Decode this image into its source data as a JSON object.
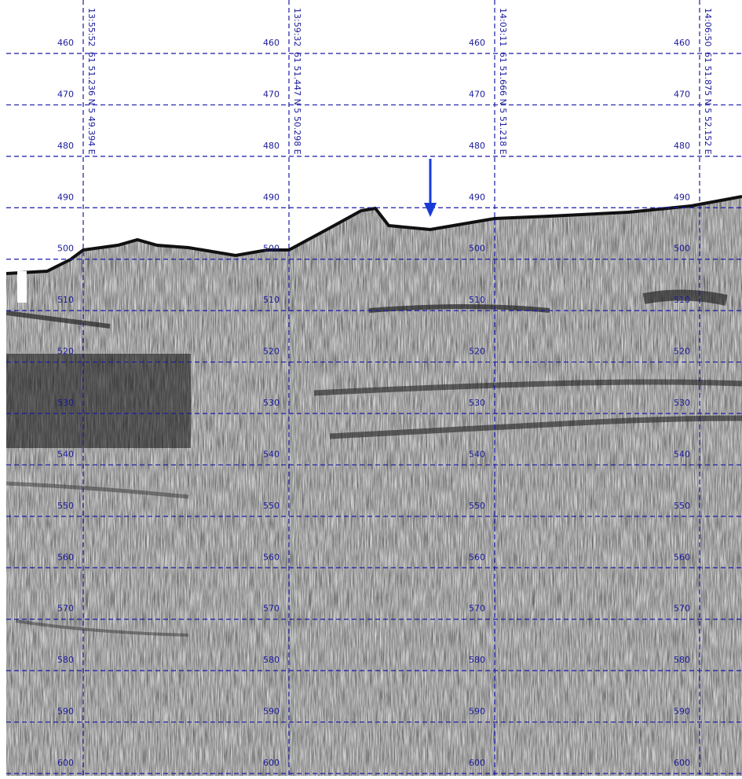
{
  "depth_labels": [
    460,
    470,
    480,
    490,
    500,
    510,
    520,
    530,
    540,
    550,
    560,
    570,
    580,
    590,
    600
  ],
  "traces": [
    {
      "time": "13:55:52",
      "position": "61 51.236 N  5 49.394 E"
    },
    {
      "time": "13:59:32",
      "position": "61 51.447 N  5 50.298 E"
    },
    {
      "time": "14:03:11",
      "position": "61 51.666 N  5 51.218 E"
    },
    {
      "time": "14:06:50",
      "position": "61 51.875 N  5 52.152 E"
    }
  ]
}
